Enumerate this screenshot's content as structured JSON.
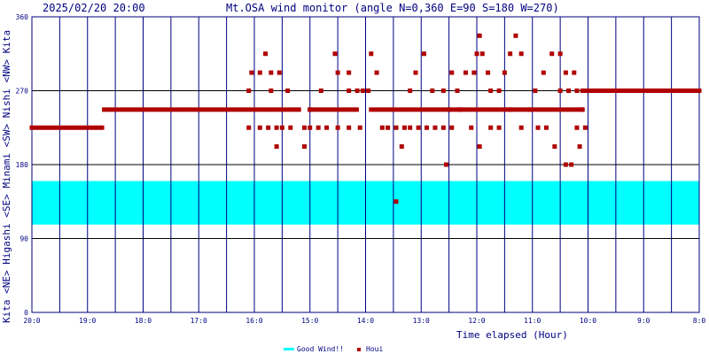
{
  "header": {
    "timestamp": "2025/02/20 20:00",
    "title": "Mt.OSA wind monitor (angle N=0,360 E=90 S=180 W=270)"
  },
  "chart_data": {
    "type": "scatter",
    "ylabel_left": "Kita <NE> Higashi <SE> Minami <SW> Nishi <NW> Kita",
    "xlabel": "Time elapsed (Hour)",
    "ylim": [
      0,
      360
    ],
    "y_ticks": [
      "0",
      "90",
      "180",
      "270",
      "360"
    ],
    "x_ticks": [
      "20:0",
      "19:0",
      "18:0",
      "17:0",
      "16:0",
      "15:0",
      "14:0",
      "13:0",
      "12:0",
      "11:0",
      "10:0",
      "9:0",
      "8:0"
    ],
    "x_hours_start": 20,
    "x_hours_end": 8,
    "good_wind_band": [
      160,
      107
    ],
    "legend": {
      "good_wind_label": "Good Wind!!",
      "houi_label": "Houi",
      "placement": "bottom-center"
    },
    "series": [
      {
        "name": "Houi",
        "segments": [
          {
            "from": 20.0,
            "to": 18.7,
            "angle": 225
          },
          {
            "from": 18.7,
            "to": 15.2,
            "angle": 247
          },
          {
            "from": 15.0,
            "to": 14.1,
            "angle": 247
          },
          {
            "from": 13.9,
            "to": 10.1,
            "angle": 247
          },
          {
            "from": 10.1,
            "to": 8.0,
            "angle": 270
          }
        ],
        "points": [
          [
            16.1,
            270
          ],
          [
            16.05,
            292
          ],
          [
            15.9,
            292
          ],
          [
            15.7,
            292
          ],
          [
            15.55,
            292
          ],
          [
            15.8,
            315
          ],
          [
            15.7,
            270
          ],
          [
            15.4,
            270
          ],
          [
            16.1,
            225
          ],
          [
            15.9,
            225
          ],
          [
            15.75,
            225
          ],
          [
            15.6,
            225
          ],
          [
            15.5,
            225
          ],
          [
            15.35,
            225
          ],
          [
            15.1,
            225
          ],
          [
            15.0,
            225
          ],
          [
            14.85,
            225
          ],
          [
            14.7,
            225
          ],
          [
            14.5,
            225
          ],
          [
            14.3,
            225
          ],
          [
            14.1,
            225
          ],
          [
            15.6,
            202
          ],
          [
            15.1,
            202
          ],
          [
            14.3,
            292
          ],
          [
            14.15,
            270
          ],
          [
            14.05,
            270
          ],
          [
            13.95,
            270
          ],
          [
            13.9,
            315
          ],
          [
            13.8,
            292
          ],
          [
            14.55,
            315
          ],
          [
            14.5,
            292
          ],
          [
            14.3,
            270
          ],
          [
            15.0,
            247
          ],
          [
            14.8,
            270
          ],
          [
            13.7,
            225
          ],
          [
            13.6,
            225
          ],
          [
            13.45,
            225
          ],
          [
            13.3,
            225
          ],
          [
            13.2,
            225
          ],
          [
            13.05,
            225
          ],
          [
            12.9,
            225
          ],
          [
            12.75,
            225
          ],
          [
            12.6,
            225
          ],
          [
            12.45,
            225
          ],
          [
            13.35,
            202
          ],
          [
            13.2,
            270
          ],
          [
            13.1,
            292
          ],
          [
            12.95,
            315
          ],
          [
            12.8,
            270
          ],
          [
            12.6,
            270
          ],
          [
            12.45,
            292
          ],
          [
            12.35,
            270
          ],
          [
            12.2,
            292
          ],
          [
            12.05,
            292
          ],
          [
            12.0,
            315
          ],
          [
            11.95,
            337
          ],
          [
            11.9,
            315
          ],
          [
            11.8,
            292
          ],
          [
            11.75,
            270
          ],
          [
            11.6,
            270
          ],
          [
            11.5,
            292
          ],
          [
            11.4,
            315
          ],
          [
            11.3,
            337
          ],
          [
            11.2,
            315
          ],
          [
            12.55,
            180
          ],
          [
            12.5,
            247
          ],
          [
            12.3,
            247
          ],
          [
            12.1,
            225
          ],
          [
            11.95,
            202
          ],
          [
            11.75,
            225
          ],
          [
            11.6,
            225
          ],
          [
            11.4,
            247
          ],
          [
            11.2,
            225
          ],
          [
            11.05,
            247
          ],
          [
            10.9,
            225
          ],
          [
            10.75,
            225
          ],
          [
            10.6,
            202
          ],
          [
            10.5,
            270
          ],
          [
            10.4,
            292
          ],
          [
            10.25,
            292
          ],
          [
            10.95,
            270
          ],
          [
            10.8,
            292
          ],
          [
            10.65,
            315
          ],
          [
            10.5,
            315
          ],
          [
            10.35,
            270
          ],
          [
            10.2,
            270
          ],
          [
            10.1,
            247
          ],
          [
            10.05,
            225
          ],
          [
            9.95,
            270
          ],
          [
            10.4,
            180
          ],
          [
            10.3,
            180
          ],
          [
            10.15,
            202
          ],
          [
            10.2,
            225
          ],
          [
            13.45,
            135
          ]
        ]
      }
    ],
    "colors": {
      "houi": "#b00000",
      "good_wind": "#00ffff",
      "grid": "#000080",
      "hline": "#000000",
      "text": "#000080",
      "title_text": "#000080"
    }
  }
}
